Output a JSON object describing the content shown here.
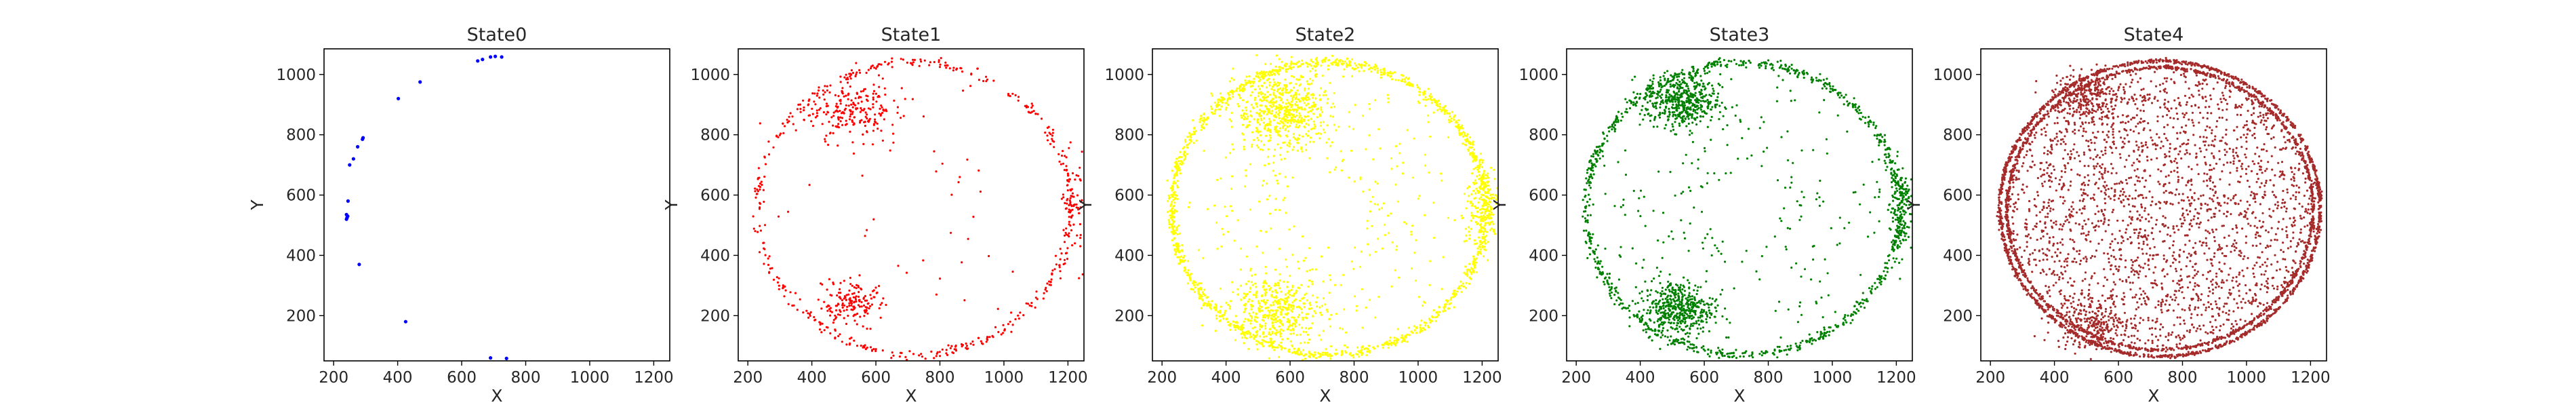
{
  "chart_data": [
    {
      "type": "scatter",
      "title": "State0",
      "xlabel": "X",
      "ylabel": "Y",
      "color": "#0000ff",
      "xlim": [
        170,
        1250
      ],
      "ylim": [
        50,
        1085
      ],
      "xticks": [
        "200",
        "400",
        "600",
        "800",
        "1000",
        "1200"
      ],
      "yticks": [
        "200",
        "400",
        "600",
        "800",
        "1000"
      ],
      "shape": "sparse",
      "points": [
        [
          240,
          520
        ],
        [
          242,
          525
        ],
        [
          244,
          530
        ],
        [
          240,
          535
        ],
        [
          245,
          580
        ],
        [
          250,
          700
        ],
        [
          262,
          720
        ],
        [
          275,
          760
        ],
        [
          290,
          785
        ],
        [
          292,
          790
        ],
        [
          280,
          370
        ],
        [
          402,
          920
        ],
        [
          470,
          975
        ],
        [
          425,
          180
        ],
        [
          650,
          1045
        ],
        [
          665,
          1050
        ],
        [
          690,
          1058
        ],
        [
          705,
          1060
        ],
        [
          725,
          1058
        ],
        [
          690,
          60
        ],
        [
          740,
          58
        ]
      ]
    },
    {
      "type": "scatter",
      "title": "State1",
      "xlabel": "X",
      "ylabel": "Y",
      "color": "#ff0000",
      "xlim": [
        170,
        1250
      ],
      "ylim": [
        50,
        1085
      ],
      "xticks": [
        "200",
        "400",
        "600",
        "800",
        "1000",
        "1200"
      ],
      "yticks": [
        "200",
        "400",
        "600",
        "800",
        "1000"
      ],
      "shape": "ring-sparse",
      "clusters": [
        [
          520,
          880,
          70,
          50,
          220
        ],
        [
          520,
          240,
          55,
          40,
          160
        ],
        [
          1220,
          560,
          18,
          90,
          60
        ]
      ],
      "ring_center": [
        720,
        555
      ],
      "ring_radii": [
        490,
        485
      ],
      "ring_points": 430
    },
    {
      "type": "scatter",
      "title": "State2",
      "xlabel": "X",
      "ylabel": "Y",
      "color": "#ffff00",
      "xlim": [
        170,
        1250
      ],
      "ylim": [
        50,
        1085
      ],
      "xticks": [
        "200",
        "400",
        "600",
        "800",
        "1000",
        "1200"
      ],
      "yticks": [
        "200",
        "400",
        "600",
        "800",
        "1000"
      ],
      "shape": "ring-dense",
      "clusters": [
        [
          580,
          880,
          75,
          65,
          600
        ],
        [
          560,
          220,
          75,
          55,
          450
        ],
        [
          1200,
          560,
          28,
          70,
          180
        ]
      ],
      "ring_center": [
        720,
        555
      ],
      "ring_radii": [
        490,
        485
      ],
      "ring_points": 1300
    },
    {
      "type": "scatter",
      "title": "State3",
      "xlabel": "X",
      "ylabel": "Y",
      "color": "#008000",
      "xlim": [
        170,
        1250
      ],
      "ylim": [
        50,
        1085
      ],
      "xticks": [
        "200",
        "400",
        "600",
        "800",
        "1000",
        "1200"
      ],
      "yticks": [
        "200",
        "400",
        "600",
        "800",
        "1000"
      ],
      "shape": "ring-medium",
      "clusters": [
        [
          530,
          910,
          60,
          45,
          500
        ],
        [
          520,
          225,
          55,
          45,
          450
        ],
        [
          1215,
          560,
          18,
          80,
          140
        ]
      ],
      "ring_center": [
        720,
        555
      ],
      "ring_radii": [
        490,
        485
      ],
      "ring_points": 900
    },
    {
      "type": "scatter",
      "title": "State4",
      "xlabel": "X",
      "ylabel": "Y",
      "color": "#a52a2a",
      "xlim": [
        170,
        1250
      ],
      "ylim": [
        50,
        1085
      ],
      "xticks": [
        "200",
        "400",
        "600",
        "800",
        "1000",
        "1200"
      ],
      "yticks": [
        "200",
        "400",
        "600",
        "800",
        "1000"
      ],
      "shape": "ring-full",
      "clusters": [
        [
          510,
          930,
          55,
          40,
          250
        ],
        [
          510,
          170,
          55,
          40,
          250
        ]
      ],
      "ring_center": [
        730,
        555
      ],
      "ring_radii": [
        500,
        490
      ],
      "ring_points": 2600,
      "interior_points": 2200
    }
  ]
}
